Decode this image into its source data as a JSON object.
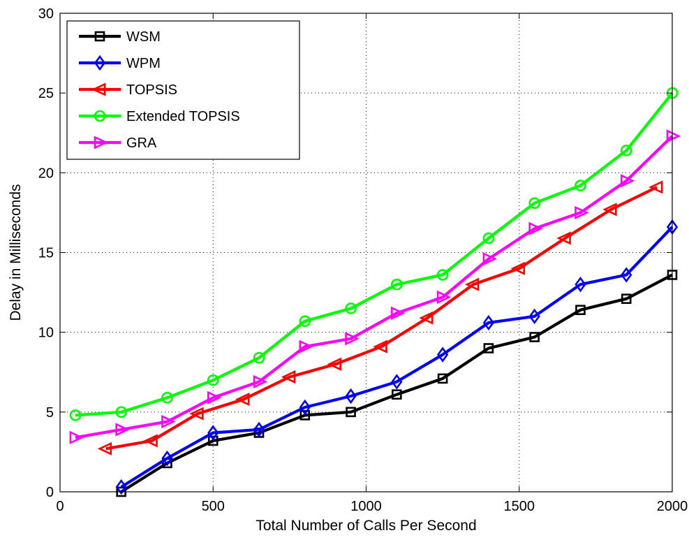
{
  "chart_data": {
    "type": "line",
    "title": "",
    "xlabel": "Total Number of Calls Per Second",
    "ylabel": "Delay in Milliseconds",
    "xlim": [
      0,
      2000
    ],
    "ylim": [
      0,
      30
    ],
    "xticks": [
      0,
      500,
      1000,
      1500,
      2000
    ],
    "yticks": [
      0,
      5,
      10,
      15,
      20,
      25,
      30
    ],
    "grid": true,
    "legend_position": "top-left",
    "series": [
      {
        "name": "WSM",
        "color": "#000000",
        "marker": "square",
        "x": [
          200,
          350,
          500,
          650,
          800,
          950,
          1100,
          1250,
          1400,
          1550,
          1700,
          1850,
          2000
        ],
        "y": [
          0.0,
          1.8,
          3.2,
          3.7,
          4.8,
          5.0,
          6.1,
          7.1,
          9.0,
          9.7,
          11.4,
          12.1,
          13.6
        ]
      },
      {
        "name": "WPM",
        "color": "#0000ff",
        "marker": "diamond",
        "x": [
          200,
          350,
          500,
          650,
          800,
          950,
          1100,
          1250,
          1400,
          1550,
          1700,
          1850,
          2000
        ],
        "y": [
          0.3,
          2.1,
          3.7,
          3.9,
          5.3,
          6.0,
          6.9,
          8.6,
          10.6,
          11.0,
          13.0,
          13.6,
          16.6
        ]
      },
      {
        "name": "TOPSIS",
        "color": "#ff0000",
        "marker": "triangle-left",
        "x": [
          150,
          300,
          450,
          600,
          750,
          900,
          1050,
          1200,
          1350,
          1500,
          1650,
          1800,
          1950
        ],
        "y": [
          2.7,
          3.2,
          4.9,
          5.8,
          7.2,
          8.0,
          9.1,
          10.9,
          13.0,
          14.0,
          15.9,
          17.7,
          19.1
        ]
      },
      {
        "name": "Extended TOPSIS",
        "color": "#00ff00",
        "marker": "circle",
        "x": [
          50,
          200,
          350,
          500,
          650,
          800,
          950,
          1100,
          1250,
          1400,
          1550,
          1700,
          1850,
          2000
        ],
        "y": [
          4.8,
          5.0,
          5.9,
          7.0,
          8.4,
          10.7,
          11.5,
          13.0,
          13.6,
          15.9,
          18.1,
          19.2,
          21.4,
          25.0
        ]
      },
      {
        "name": "GRA",
        "color": "#ff00ff",
        "marker": "triangle-right",
        "x": [
          50,
          200,
          350,
          500,
          650,
          800,
          950,
          1100,
          1250,
          1400,
          1550,
          1700,
          1850,
          2000
        ],
        "y": [
          3.4,
          3.9,
          4.4,
          5.9,
          6.9,
          9.1,
          9.6,
          11.2,
          12.2,
          14.6,
          16.5,
          17.5,
          19.5,
          22.3
        ]
      }
    ]
  }
}
